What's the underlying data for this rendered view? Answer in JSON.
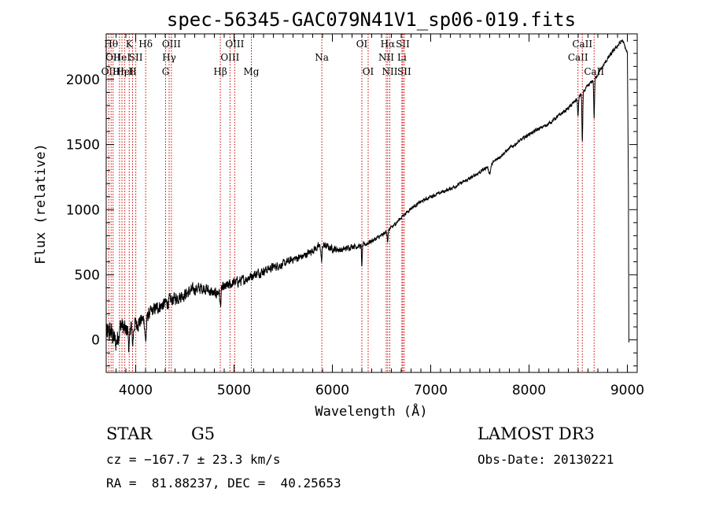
{
  "chart_data": {
    "type": "line",
    "title": "spec-56345-GAC079N41V1_sp06-019.fits",
    "xlabel": "Wavelength (Å)",
    "ylabel": "Flux (relative)",
    "xlim": [
      3700,
      9100
    ],
    "ylim": [
      -250,
      2350
    ],
    "x_ticks": [
      4000,
      5000,
      6000,
      7000,
      8000,
      9000
    ],
    "y_ticks": [
      0,
      500,
      1000,
      1500,
      2000
    ],
    "series": [
      {
        "name": "spectrum",
        "color": "#000000",
        "anchors": [
          [
            3700,
            40
          ],
          [
            3750,
            60
          ],
          [
            3800,
            -30
          ],
          [
            3850,
            120
          ],
          [
            3900,
            60
          ],
          [
            3950,
            180
          ],
          [
            4000,
            120
          ],
          [
            4100,
            170
          ],
          [
            4200,
            240
          ],
          [
            4300,
            280
          ],
          [
            4400,
            320
          ],
          [
            4500,
            350
          ],
          [
            4600,
            390
          ],
          [
            4700,
            400
          ],
          [
            4800,
            350
          ],
          [
            4900,
            400
          ],
          [
            5000,
            440
          ],
          [
            5100,
            460
          ],
          [
            5200,
            500
          ],
          [
            5300,
            530
          ],
          [
            5400,
            560
          ],
          [
            5500,
            580
          ],
          [
            5600,
            620
          ],
          [
            5700,
            640
          ],
          [
            5800,
            690
          ],
          [
            5900,
            730
          ],
          [
            6000,
            700
          ],
          [
            6100,
            690
          ],
          [
            6200,
            720
          ],
          [
            6300,
            720
          ],
          [
            6400,
            760
          ],
          [
            6500,
            800
          ],
          [
            6600,
            860
          ],
          [
            6700,
            940
          ],
          [
            6800,
            1010
          ],
          [
            6900,
            1060
          ],
          [
            7000,
            1100
          ],
          [
            7200,
            1160
          ],
          [
            7400,
            1240
          ],
          [
            7600,
            1340
          ],
          [
            7800,
            1470
          ],
          [
            8000,
            1580
          ],
          [
            8200,
            1660
          ],
          [
            8400,
            1780
          ],
          [
            8500,
            1860
          ],
          [
            8600,
            1950
          ],
          [
            8700,
            2040
          ],
          [
            8800,
            2160
          ],
          [
            8900,
            2260
          ],
          [
            8950,
            2300
          ],
          [
            9000,
            2200
          ]
        ],
        "features": [
          {
            "center": 3934,
            "depth": 200,
            "width": 12
          },
          {
            "center": 3968,
            "depth": 180,
            "width": 12
          },
          {
            "center": 4101,
            "depth": 180,
            "width": 10
          },
          {
            "center": 4861,
            "depth": 120,
            "width": 8
          },
          {
            "center": 5890,
            "depth": 120,
            "width": 8
          },
          {
            "center": 6300,
            "depth": 160,
            "width": 5
          },
          {
            "center": 6563,
            "depth": 80,
            "width": 6
          },
          {
            "center": 7600,
            "depth": 60,
            "width": 15
          },
          {
            "center": 8498,
            "depth": 150,
            "width": 6
          },
          {
            "center": 8542,
            "depth": 380,
            "width": 6
          },
          {
            "center": 8662,
            "depth": 300,
            "width": 6
          }
        ],
        "tail": [
          [
            9010,
            1200
          ],
          [
            9015,
            -20
          ]
        ],
        "noise": [
          [
            3700,
            140
          ],
          [
            4100,
            80
          ],
          [
            4700,
            70
          ],
          [
            5400,
            50
          ],
          [
            6000,
            40
          ],
          [
            6700,
            20
          ],
          [
            8000,
            20
          ],
          [
            9000,
            25
          ]
        ]
      }
    ],
    "lines": [
      {
        "wave": 3726,
        "label": "OII",
        "row": 3
      },
      {
        "wave": 3750,
        "label": "Hθ",
        "row": 1
      },
      {
        "wave": 3770,
        "label": "OII",
        "row": 2
      },
      {
        "wave": 3835,
        "label": "Hη",
        "row": 3
      },
      {
        "wave": 3860,
        "label": "HeI",
        "row": 2
      },
      {
        "wave": 3889,
        "label": "HeI",
        "row": 3
      },
      {
        "wave": 3934,
        "label": "K",
        "row": 1
      },
      {
        "wave": 3968,
        "label": "H",
        "row": 3
      },
      {
        "wave": 4001,
        "label": "SII",
        "row": 2
      },
      {
        "wave": 4101,
        "label": "Hδ",
        "row": 1
      },
      {
        "wave": 4304,
        "label": "G",
        "row": 3
      },
      {
        "wave": 4340,
        "label": "Hγ",
        "row": 2
      },
      {
        "wave": 4363,
        "label": "OIII",
        "row": 1
      },
      {
        "wave": 4861,
        "label": "Hβ",
        "row": 3
      },
      {
        "wave": 4959,
        "label": "OIII",
        "row": 2
      },
      {
        "wave": 5007,
        "label": "OIII",
        "row": 1
      },
      {
        "wave": 5176,
        "label": "Mg",
        "row": 3
      },
      {
        "wave": 5893,
        "label": "Na",
        "row": 2
      },
      {
        "wave": 6300,
        "label": "OI",
        "row": 1
      },
      {
        "wave": 6364,
        "label": "OI",
        "row": 3
      },
      {
        "wave": 6548,
        "label": "NII",
        "row": 2
      },
      {
        "wave": 6563,
        "label": "Hα",
        "row": 1
      },
      {
        "wave": 6584,
        "label": "NII",
        "row": 3
      },
      {
        "wave": 6707,
        "label": "Li",
        "row": 2
      },
      {
        "wave": 6716,
        "label": "SII",
        "row": 1
      },
      {
        "wave": 6731,
        "label": "SII",
        "row": 3
      },
      {
        "wave": 8498,
        "label": "CaII",
        "row": 2
      },
      {
        "wave": 8542,
        "label": "CaII",
        "row": 1
      },
      {
        "wave": 8662,
        "label": "CaII",
        "row": 3
      }
    ],
    "line_color": "#cc0000"
  },
  "info": {
    "class_label": "STAR",
    "subclass": "G5",
    "survey": "LAMOST DR3",
    "cz": "cz = −167.7 ± 23.3 km/s",
    "obs_date": "Obs-Date: 20130221",
    "radec": "RA =  81.88237, DEC =  40.25653"
  }
}
